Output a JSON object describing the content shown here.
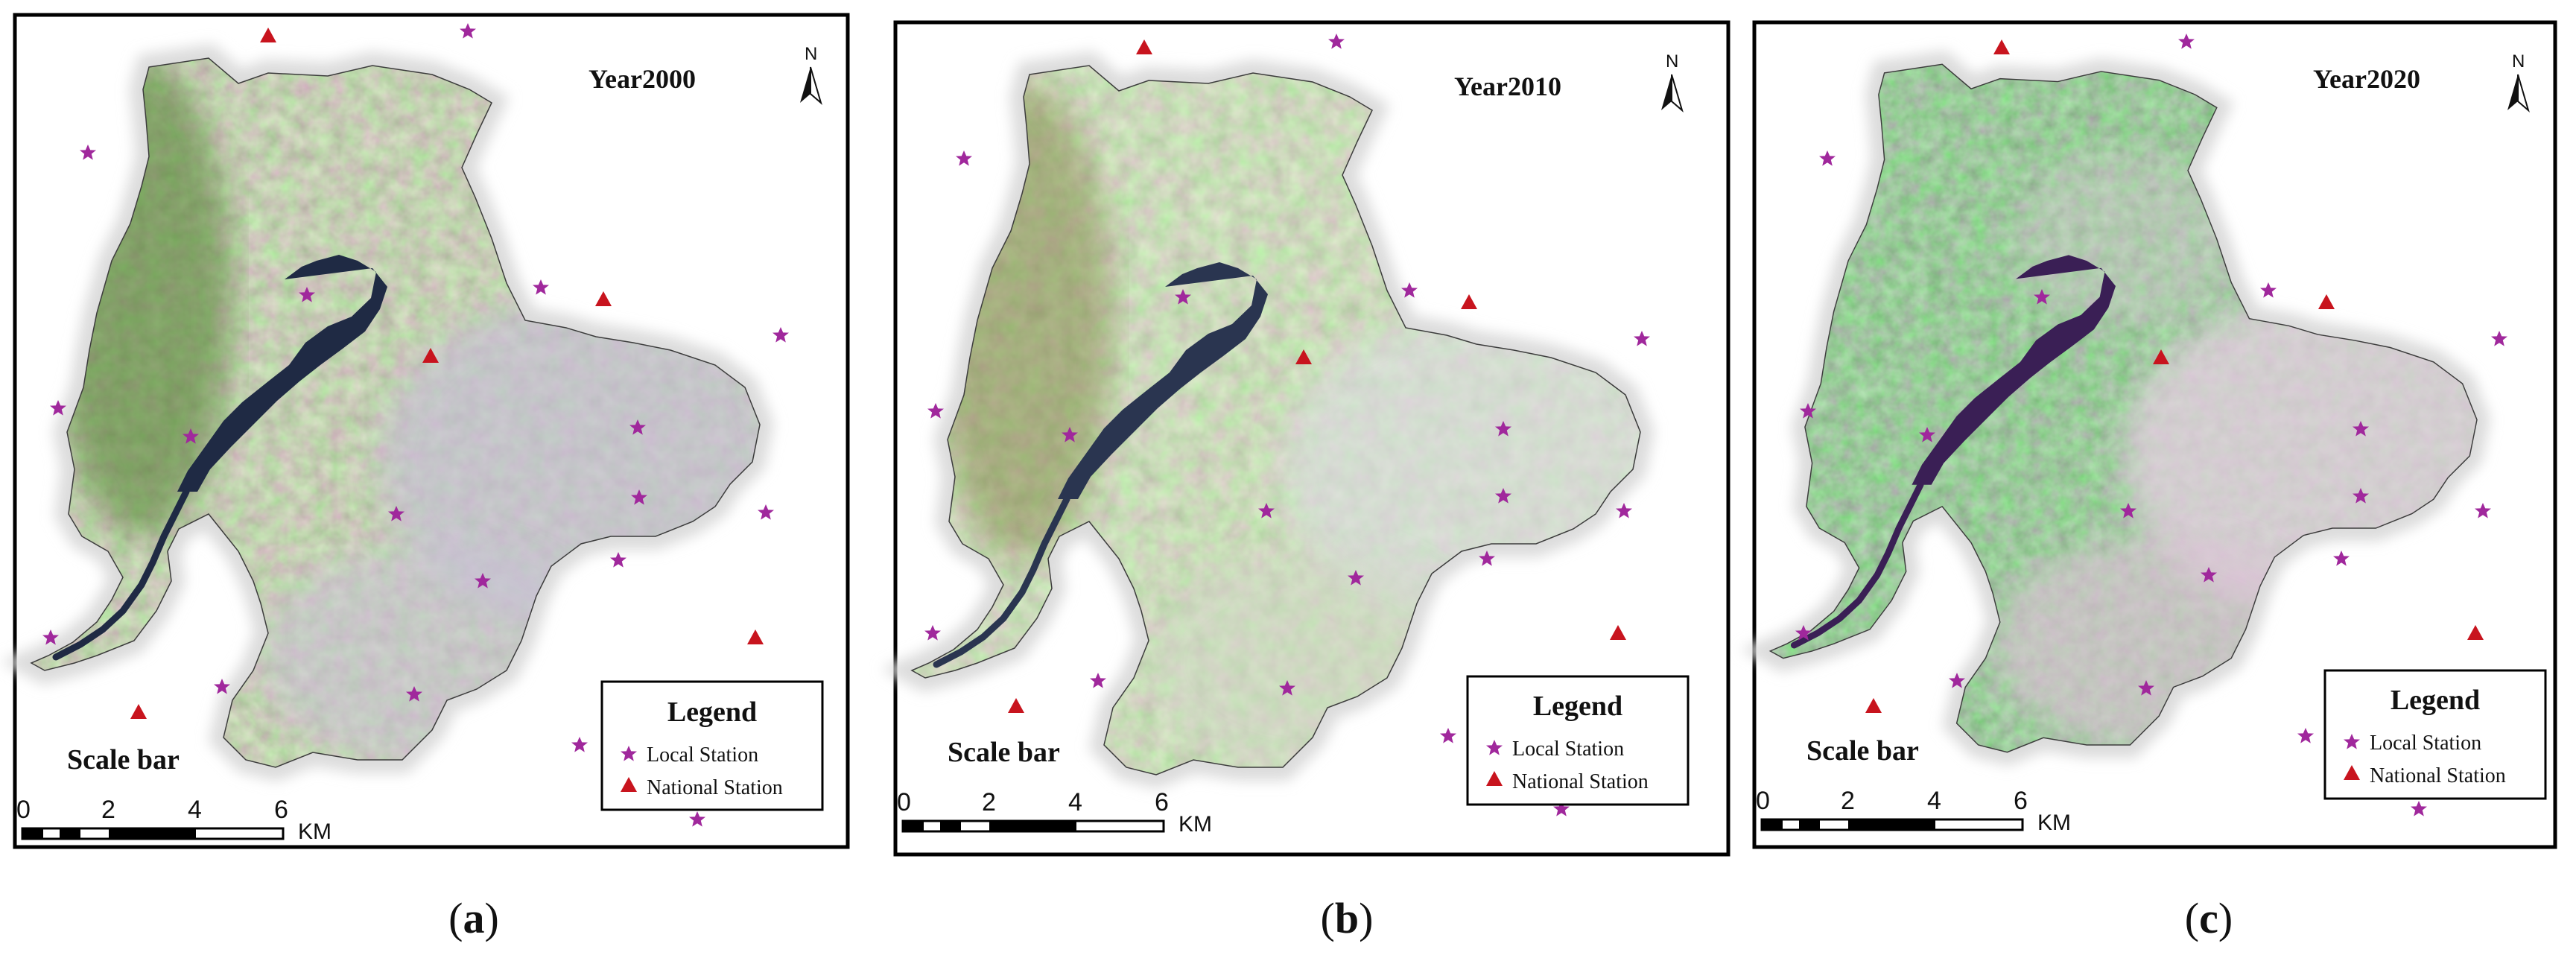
{
  "panels": [
    {
      "id": "a",
      "year_label": "Year2000",
      "caption_open": "(",
      "caption_letter": "a",
      "caption_close": ")",
      "land_base": "#6f8f52",
      "land_light": "#b9b4c9",
      "water": "#1f2a44"
    },
    {
      "id": "b",
      "year_label": "Year2010",
      "caption_open": "(",
      "caption_letter": "b",
      "caption_close": ")",
      "land_base": "#84a860",
      "land_light": "#d4d6da",
      "water": "#2a3550"
    },
    {
      "id": "c",
      "year_label": "Year2020",
      "caption_open": "(",
      "caption_letter": "c",
      "caption_close": ")",
      "land_base": "#3f7f3a",
      "land_light": "#e2c9de",
      "water": "#3a1f55"
    }
  ],
  "north_label": "N",
  "legend": {
    "title": "Legend",
    "local_station": "Local Station",
    "national_station": "National Station"
  },
  "scale_bar": {
    "title": "Scale bar",
    "ticks": [
      "0",
      "2",
      "4",
      "6"
    ],
    "unit": "KM"
  },
  "colors": {
    "local_station": "#a0289c",
    "national_station": "#c8141e",
    "frame": "#000000",
    "halo": "#d9d9d9"
  },
  "icons": {
    "north_arrow": "north-arrow-icon",
    "local_station_marker": "star-icon",
    "national_station_marker": "triangle-icon"
  }
}
